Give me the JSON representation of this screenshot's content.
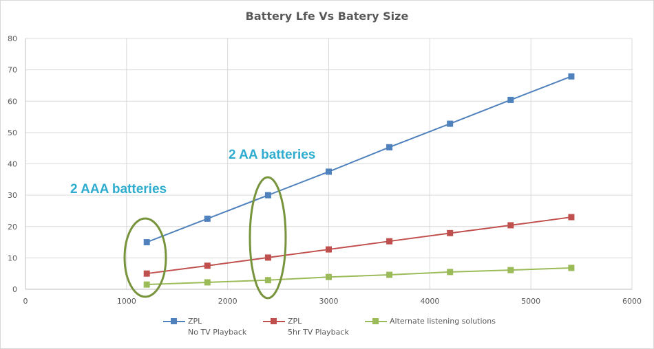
{
  "chart_data": {
    "type": "line",
    "title": "Battery Lfe Vs Batery Size",
    "xlabel": "",
    "ylabel": "",
    "xlim": [
      0,
      6000
    ],
    "ylim": [
      0,
      80
    ],
    "x_ticks": [
      "0",
      "1000",
      "2000",
      "3000",
      "4000",
      "5000",
      "6000"
    ],
    "y_ticks": [
      "0",
      "10",
      "20",
      "30",
      "40",
      "50",
      "60",
      "70",
      "80"
    ],
    "grid": true,
    "legend_position": "bottom",
    "x": [
      1200,
      1800,
      2400,
      3000,
      3600,
      4200,
      4800,
      5400
    ],
    "series": [
      {
        "name": "ZPL No TV Playback",
        "color": "#4f81bd",
        "values": [
          15,
          22.5,
          30,
          37.5,
          45.3,
          52.8,
          60.4,
          67.9
        ]
      },
      {
        "name": "ZPL 5hr TV Playback",
        "color": "#c0504d",
        "values": [
          5,
          7.5,
          10.1,
          12.7,
          15.3,
          17.9,
          20.4,
          23.0
        ]
      },
      {
        "name": "Alternate listening solutions",
        "color": "#9bbb59",
        "values": [
          1.5,
          2.2,
          2.9,
          3.9,
          4.6,
          5.5,
          6.1,
          6.8
        ]
      }
    ],
    "annotations": [
      {
        "text": "2 AAA batteries",
        "color": "#2eaccf",
        "circled_x": 1200
      },
      {
        "text": "2 AA batteries",
        "color": "#2eaccf",
        "circled_x": 2400
      }
    ]
  },
  "legend": [
    {
      "line1": "ZPL",
      "line2": "No TV Playback",
      "color": "#4f81bd"
    },
    {
      "line1": "ZPL",
      "line2": "5hr TV Playback",
      "color": "#c0504d"
    },
    {
      "line1": "Alternate listening solutions",
      "line2": "",
      "color": "#9bbb59"
    }
  ]
}
